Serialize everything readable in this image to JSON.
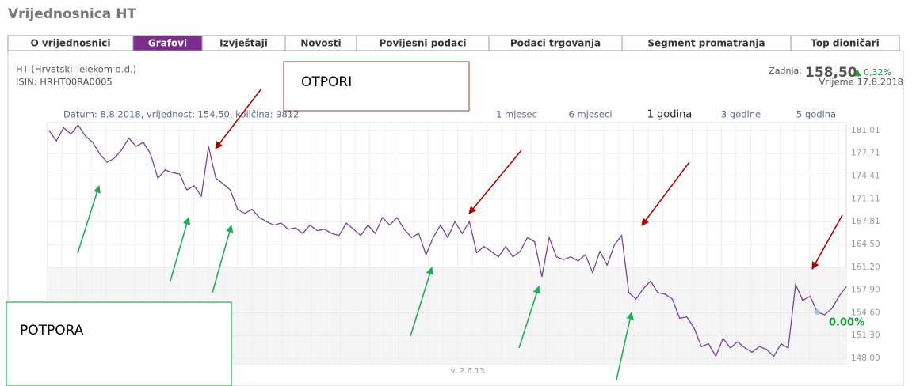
{
  "header": {
    "title": "Vrijednosnica HT"
  },
  "tabs": [
    "O vrijednosnici",
    "Grafovi",
    "Izvještaji",
    "Novosti",
    "Povijesni podaci",
    "Podaci trgovanja",
    "Segment promatranja",
    "Top dioničari"
  ],
  "active_tab": 1,
  "stock": {
    "name": "HT (Hrvatski Telekom d.d.)",
    "isin": "ISIN: HRHT00RA0005",
    "last_label": "Zadnja:",
    "last_value": "158,50",
    "change": "▲ 0,32%",
    "time": "Vrijeme 17.8.2018"
  },
  "periods": [
    "1 mjesec",
    "6 mjeseci",
    "1 godina",
    "3 godine",
    "5 godina"
  ],
  "active_period": 2,
  "version": "v. 2.6.13",
  "annotations": [
    "OTPORI",
    "POTPORA"
  ],
  "chart_data": {
    "type": "line",
    "subtitle": "Datum: 8.8.2018, vrijednost: 154.50, količina: 9812",
    "annotation": "0.00%",
    "color": "#7b3f98",
    "values": [
      181.0,
      179.5,
      181.4,
      180.5,
      181.8,
      180.2,
      179.3,
      177.6,
      176.4,
      177.0,
      178.2,
      179.9,
      178.7,
      179.3,
      177.6,
      174.1,
      175.3,
      174.9,
      174.7,
      172.4,
      173.0,
      171.5,
      178.7,
      174.1,
      173.3,
      172.4,
      169.6,
      169.0,
      169.6,
      168.4,
      167.8,
      167.3,
      167.6,
      166.7,
      166.9,
      166.1,
      167.3,
      166.5,
      166.7,
      166.1,
      165.8,
      167.6,
      166.7,
      165.8,
      167.3,
      166.1,
      168.4,
      167.3,
      168.4,
      166.7,
      165.5,
      166.1,
      163.0,
      165.5,
      167.3,
      165.5,
      167.8,
      166.1,
      167.8,
      163.3,
      164.2,
      163.5,
      162.7,
      164.2,
      162.7,
      163.5,
      165.5,
      164.9,
      159.8,
      165.5,
      162.7,
      162.3,
      162.7,
      162.1,
      163.0,
      160.4,
      163.5,
      161.5,
      164.4,
      165.8,
      157.5,
      156.6,
      158.1,
      159.2,
      157.5,
      157.3,
      156.6,
      153.8,
      154.0,
      152.4,
      149.7,
      150.1,
      148.3,
      150.9,
      149.5,
      150.4,
      149.5,
      148.9,
      149.7,
      149.3,
      148.3,
      150.1,
      149.5,
      158.7,
      156.4,
      157.0,
      154.7,
      154.3,
      155.2,
      157.0,
      158.4
    ],
    "ylim": [
      147.2,
      182.15
    ],
    "yticks": [
      181.01,
      177.71,
      174.41,
      171.11,
      167.81,
      {
        "value": 164.5,
        "label": "164.50"
      },
      {
        "value": 161.2,
        "label": "161.20"
      },
      {
        "value": 157.9,
        "label": "157.90"
      },
      {
        "value": 154.6,
        "label": "154.60"
      },
      {
        "value": 151.3,
        "label": "151.30"
      },
      {
        "value": 148,
        "label": "148.00"
      }
    ],
    "grid": true
  }
}
